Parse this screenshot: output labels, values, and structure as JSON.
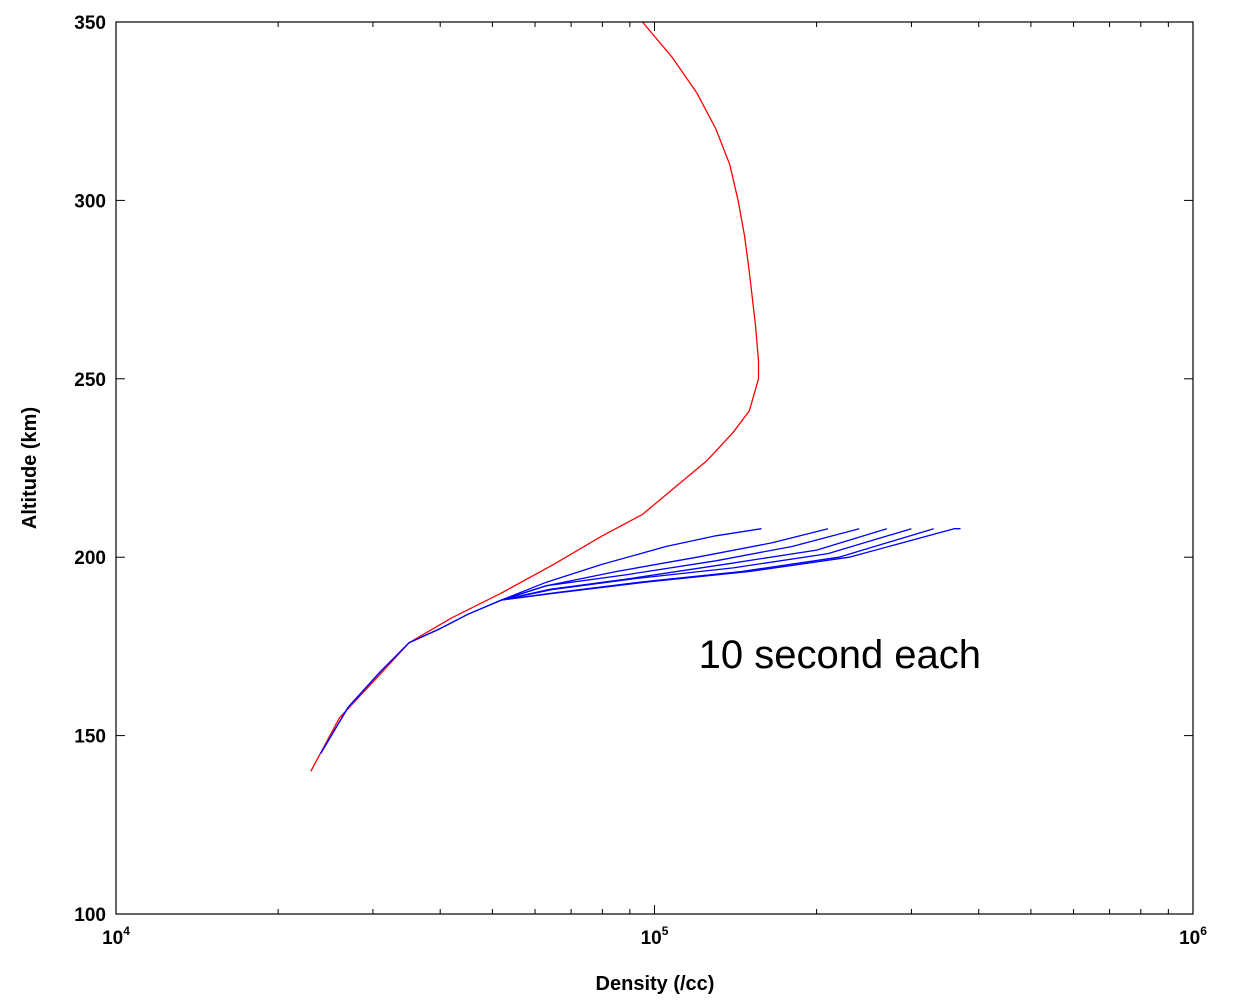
{
  "chart_data": {
    "type": "line",
    "title": "",
    "xlabel": "Density (/cc)",
    "ylabel": "Altitude (km)",
    "xscale": "log",
    "xlim": [
      10000,
      1000000
    ],
    "ylim": [
      100,
      350
    ],
    "x_ticks": [
      {
        "value": 10000,
        "base": "10",
        "exp": "4"
      },
      {
        "value": 100000,
        "base": "10",
        "exp": "5"
      },
      {
        "value": 1000000,
        "base": "10",
        "exp": "6"
      }
    ],
    "y_ticks": [
      {
        "value": 100,
        "label": "100"
      },
      {
        "value": 150,
        "label": "150"
      },
      {
        "value": 200,
        "label": "200"
      },
      {
        "value": 250,
        "label": "250"
      },
      {
        "value": 300,
        "label": "300"
      },
      {
        "value": 350,
        "label": "350"
      }
    ],
    "grid": false,
    "legend": "none",
    "annotation": {
      "text": "10 second each",
      "x": 170000,
      "y": 169
    },
    "series": [
      {
        "color": "#ff0000",
        "points": [
          [
            23000,
            140
          ],
          [
            26000,
            155
          ],
          [
            30000,
            165
          ],
          [
            35000,
            176
          ],
          [
            42000,
            183
          ],
          [
            52000,
            190
          ],
          [
            65000,
            198
          ],
          [
            80000,
            206
          ],
          [
            95000,
            212
          ],
          [
            110000,
            220
          ],
          [
            125000,
            227
          ],
          [
            140000,
            235
          ],
          [
            150000,
            241
          ],
          [
            156000,
            250
          ],
          [
            156000,
            255
          ],
          [
            154000,
            265
          ],
          [
            150000,
            280
          ],
          [
            147000,
            290
          ],
          [
            143000,
            300
          ],
          [
            138000,
            310
          ],
          [
            130000,
            320
          ],
          [
            120000,
            330
          ],
          [
            108000,
            340
          ],
          [
            95000,
            350
          ]
        ]
      },
      {
        "color": "#0000ff",
        "points": [
          [
            24000,
            145
          ],
          [
            27000,
            158
          ],
          [
            31000,
            168
          ],
          [
            35000,
            176
          ],
          [
            40000,
            180
          ],
          [
            45000,
            184
          ],
          [
            52000,
            188
          ],
          [
            63000,
            193
          ],
          [
            80000,
            198
          ],
          [
            105000,
            203
          ],
          [
            130000,
            206
          ],
          [
            158000,
            208
          ]
        ]
      },
      {
        "color": "#0000ff",
        "points": [
          [
            24000,
            145
          ],
          [
            27000,
            158
          ],
          [
            31000,
            168
          ],
          [
            35000,
            176
          ],
          [
            40000,
            180
          ],
          [
            45000,
            184
          ],
          [
            52000,
            188
          ],
          [
            63000,
            192
          ],
          [
            85000,
            196
          ],
          [
            120000,
            200
          ],
          [
            165000,
            204
          ],
          [
            210000,
            208
          ]
        ]
      },
      {
        "color": "#0000ff",
        "points": [
          [
            52000,
            188
          ],
          [
            63000,
            192
          ],
          [
            88000,
            195
          ],
          [
            130000,
            199
          ],
          [
            180000,
            203
          ],
          [
            240000,
            208
          ]
        ]
      },
      {
        "color": "#0000ff",
        "points": [
          [
            52000,
            188
          ],
          [
            64000,
            191
          ],
          [
            90000,
            194
          ],
          [
            135000,
            198
          ],
          [
            200000,
            202
          ],
          [
            270000,
            208
          ]
        ]
      },
      {
        "color": "#0000ff",
        "points": [
          [
            52000,
            188
          ],
          [
            65000,
            191
          ],
          [
            92000,
            194
          ],
          [
            140000,
            197
          ],
          [
            210000,
            201
          ],
          [
            300000,
            208
          ]
        ]
      },
      {
        "color": "#0000ff",
        "points": [
          [
            52000,
            188
          ],
          [
            65000,
            190
          ],
          [
            94000,
            193
          ],
          [
            145000,
            196
          ],
          [
            220000,
            200
          ],
          [
            330000,
            208
          ]
        ]
      },
      {
        "color": "#0000ff",
        "points": [
          [
            52000,
            188
          ],
          [
            66000,
            190
          ],
          [
            96000,
            193
          ],
          [
            150000,
            196
          ],
          [
            230000,
            200
          ],
          [
            360000,
            208
          ],
          [
            370000,
            208
          ]
        ]
      }
    ]
  }
}
